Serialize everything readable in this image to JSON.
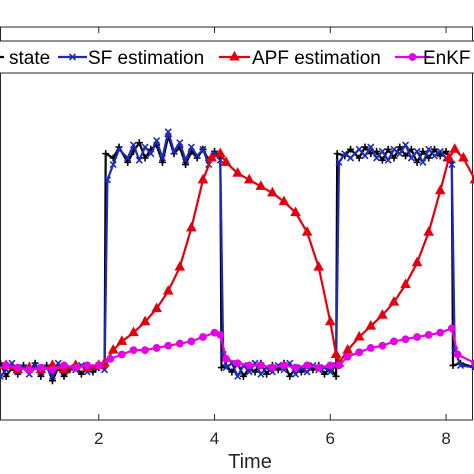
{
  "chart_data": {
    "type": "line",
    "xlabel": "Time",
    "ylabel": "",
    "title": "",
    "xlim": [
      0.0,
      8.5
    ],
    "ylim": [
      -0.2,
      1.6
    ],
    "xticks": [
      2,
      4,
      6,
      8
    ],
    "xtick_labels": [
      "2",
      "4",
      "6",
      "8"
    ],
    "grid": false,
    "legend_position": "top",
    "series": [
      {
        "name": "state",
        "color": "#000000",
        "marker": "plus",
        "points": [
          [
            0.0,
            0.03
          ],
          [
            0.1,
            0.05
          ],
          [
            0.2,
            0.02
          ],
          [
            0.3,
            0.06
          ],
          [
            0.4,
            0.0
          ],
          [
            0.5,
            0.04
          ],
          [
            0.6,
            0.01
          ],
          [
            0.7,
            0.05
          ],
          [
            0.8,
            0.02
          ],
          [
            0.9,
            0.06
          ],
          [
            1.0,
            0.0
          ],
          [
            1.1,
            0.05
          ],
          [
            1.2,
            -0.02
          ],
          [
            1.3,
            0.04
          ],
          [
            1.4,
            0.0
          ],
          [
            1.5,
            0.03
          ],
          [
            1.6,
            0.05
          ],
          [
            1.7,
            0.01
          ],
          [
            1.8,
            0.04
          ],
          [
            1.9,
            0.02
          ],
          [
            2.0,
            0.04
          ],
          [
            2.1,
            0.06
          ],
          [
            2.12,
            1.02
          ],
          [
            2.25,
            1.0
          ],
          [
            2.35,
            1.05
          ],
          [
            2.5,
            0.98
          ],
          [
            2.6,
            1.03
          ],
          [
            2.7,
            1.07
          ],
          [
            2.8,
            1.0
          ],
          [
            2.9,
            1.04
          ],
          [
            3.0,
            1.06
          ],
          [
            3.1,
            0.98
          ],
          [
            3.2,
            1.1
          ],
          [
            3.3,
            1.02
          ],
          [
            3.4,
            1.05
          ],
          [
            3.5,
            0.97
          ],
          [
            3.6,
            1.03
          ],
          [
            3.7,
            1.0
          ],
          [
            3.8,
            1.04
          ],
          [
            3.9,
            0.99
          ],
          [
            4.0,
            1.03
          ],
          [
            4.1,
            1.0
          ],
          [
            4.12,
            0.04
          ],
          [
            4.2,
            0.05
          ],
          [
            4.3,
            0.02
          ],
          [
            4.4,
            0.06
          ],
          [
            4.5,
            0.0
          ],
          [
            4.6,
            0.04
          ],
          [
            4.7,
            0.02
          ],
          [
            4.8,
            0.06
          ],
          [
            4.9,
            0.01
          ],
          [
            5.0,
            0.05
          ],
          [
            5.1,
            0.03
          ],
          [
            5.2,
            0.06
          ],
          [
            5.3,
            0.0
          ],
          [
            5.4,
            0.04
          ],
          [
            5.5,
            0.02
          ],
          [
            5.6,
            0.05
          ],
          [
            5.7,
            0.03
          ],
          [
            5.8,
            0.05
          ],
          [
            5.9,
            0.01
          ],
          [
            6.0,
            0.04
          ],
          [
            6.1,
            0.0
          ],
          [
            6.12,
            1.02
          ],
          [
            6.25,
            1.01
          ],
          [
            6.35,
            1.04
          ],
          [
            6.5,
            1.0
          ],
          [
            6.6,
            1.05
          ],
          [
            6.7,
            1.02
          ],
          [
            6.8,
            1.03
          ],
          [
            6.9,
            0.99
          ],
          [
            7.0,
            1.04
          ],
          [
            7.1,
            1.0
          ],
          [
            7.2,
            1.05
          ],
          [
            7.3,
            1.01
          ],
          [
            7.4,
            1.04
          ],
          [
            7.5,
            0.98
          ],
          [
            7.6,
            1.03
          ],
          [
            7.7,
            1.0
          ],
          [
            7.8,
            1.04
          ],
          [
            7.9,
            1.01
          ],
          [
            8.0,
            1.03
          ],
          [
            8.1,
            0.98
          ],
          [
            8.12,
            0.05
          ],
          [
            8.25,
            0.06
          ],
          [
            8.5,
            0.04
          ]
        ]
      },
      {
        "name": "SF estimation",
        "color": "#1f2bb8",
        "marker": "x",
        "points": [
          [
            0.0,
            0.04
          ],
          [
            0.1,
            0.02
          ],
          [
            0.2,
            0.05
          ],
          [
            0.3,
            0.0
          ],
          [
            0.4,
            0.03
          ],
          [
            0.5,
            0.06
          ],
          [
            0.6,
            0.02
          ],
          [
            0.7,
            0.04
          ],
          [
            0.8,
            0.01
          ],
          [
            0.9,
            0.05
          ],
          [
            1.0,
            0.02
          ],
          [
            1.1,
            0.04
          ],
          [
            1.2,
            0.0
          ],
          [
            1.3,
            0.06
          ],
          [
            1.4,
            0.02
          ],
          [
            1.5,
            0.04
          ],
          [
            1.6,
            0.03
          ],
          [
            1.7,
            0.05
          ],
          [
            1.8,
            0.02
          ],
          [
            1.9,
            0.04
          ],
          [
            2.0,
            0.05
          ],
          [
            2.1,
            0.03
          ],
          [
            2.15,
            0.9
          ],
          [
            2.25,
            0.97
          ],
          [
            2.35,
            1.04
          ],
          [
            2.5,
            1.0
          ],
          [
            2.6,
            1.06
          ],
          [
            2.7,
            0.99
          ],
          [
            2.8,
            1.05
          ],
          [
            2.9,
            1.02
          ],
          [
            3.0,
            1.08
          ],
          [
            3.1,
            1.0
          ],
          [
            3.2,
            1.12
          ],
          [
            3.3,
            1.03
          ],
          [
            3.4,
            1.07
          ],
          [
            3.5,
            0.99
          ],
          [
            3.6,
            1.05
          ],
          [
            3.7,
            1.01
          ],
          [
            3.8,
            1.04
          ],
          [
            3.9,
            0.97
          ],
          [
            4.0,
            1.02
          ],
          [
            4.1,
            0.99
          ],
          [
            4.15,
            0.1
          ],
          [
            4.2,
            0.04
          ],
          [
            4.3,
            0.06
          ],
          [
            4.4,
            0.0
          ],
          [
            4.5,
            0.05
          ],
          [
            4.6,
            0.02
          ],
          [
            4.7,
            0.06
          ],
          [
            4.8,
            0.01
          ],
          [
            4.9,
            0.04
          ],
          [
            5.0,
            0.02
          ],
          [
            5.1,
            0.05
          ],
          [
            5.2,
            0.03
          ],
          [
            5.3,
            0.06
          ],
          [
            5.4,
            0.01
          ],
          [
            5.5,
            0.04
          ],
          [
            5.6,
            0.02
          ],
          [
            5.7,
            0.05
          ],
          [
            5.8,
            0.03
          ],
          [
            5.9,
            0.04
          ],
          [
            6.0,
            0.02
          ],
          [
            6.1,
            0.05
          ],
          [
            6.15,
            0.98
          ],
          [
            6.25,
            1.02
          ],
          [
            6.35,
            1.0
          ],
          [
            6.5,
            1.04
          ],
          [
            6.6,
            1.01
          ],
          [
            6.7,
            1.05
          ],
          [
            6.8,
            1.0
          ],
          [
            6.9,
            1.03
          ],
          [
            7.0,
            0.99
          ],
          [
            7.1,
            1.04
          ],
          [
            7.2,
            1.02
          ],
          [
            7.3,
            1.06
          ],
          [
            7.4,
            1.0
          ],
          [
            7.5,
            1.03
          ],
          [
            7.6,
            0.98
          ],
          [
            7.7,
            1.04
          ],
          [
            7.8,
            1.01
          ],
          [
            7.9,
            1.03
          ],
          [
            8.0,
            1.0
          ],
          [
            8.1,
            0.97
          ],
          [
            8.15,
            0.12
          ],
          [
            8.25,
            0.05
          ],
          [
            8.5,
            0.04
          ]
        ]
      },
      {
        "name": "APF estimation",
        "color": "#e3000e",
        "marker": "triangle",
        "points": [
          [
            0.0,
            0.04
          ],
          [
            0.2,
            0.03
          ],
          [
            0.4,
            0.05
          ],
          [
            0.6,
            0.03
          ],
          [
            0.8,
            0.04
          ],
          [
            1.0,
            0.03
          ],
          [
            1.2,
            0.05
          ],
          [
            1.4,
            0.03
          ],
          [
            1.6,
            0.05
          ],
          [
            1.8,
            0.04
          ],
          [
            2.0,
            0.05
          ],
          [
            2.1,
            0.06
          ],
          [
            2.25,
            0.12
          ],
          [
            2.4,
            0.16
          ],
          [
            2.6,
            0.2
          ],
          [
            2.8,
            0.25
          ],
          [
            3.0,
            0.31
          ],
          [
            3.2,
            0.39
          ],
          [
            3.4,
            0.5
          ],
          [
            3.6,
            0.68
          ],
          [
            3.8,
            0.9
          ],
          [
            3.95,
            1.0
          ],
          [
            4.1,
            1.02
          ],
          [
            4.2,
            0.98
          ],
          [
            4.4,
            0.93
          ],
          [
            4.6,
            0.9
          ],
          [
            4.8,
            0.87
          ],
          [
            5.0,
            0.84
          ],
          [
            5.2,
            0.8
          ],
          [
            5.4,
            0.75
          ],
          [
            5.6,
            0.66
          ],
          [
            5.8,
            0.5
          ],
          [
            6.0,
            0.25
          ],
          [
            6.1,
            0.1
          ],
          [
            6.15,
            0.06
          ],
          [
            6.3,
            0.12
          ],
          [
            6.5,
            0.18
          ],
          [
            6.7,
            0.23
          ],
          [
            6.9,
            0.28
          ],
          [
            7.1,
            0.34
          ],
          [
            7.3,
            0.42
          ],
          [
            7.5,
            0.52
          ],
          [
            7.7,
            0.66
          ],
          [
            7.9,
            0.85
          ],
          [
            8.05,
            1.0
          ],
          [
            8.15,
            1.04
          ],
          [
            8.3,
            1.0
          ],
          [
            8.5,
            0.9
          ]
        ]
      },
      {
        "name": "EnKF estimation",
        "color": "#e600e6",
        "marker": "circle",
        "points": [
          [
            0.0,
            0.04
          ],
          [
            0.2,
            0.03
          ],
          [
            0.4,
            0.05
          ],
          [
            0.6,
            0.04
          ],
          [
            0.8,
            0.03
          ],
          [
            1.0,
            0.04
          ],
          [
            1.2,
            0.03
          ],
          [
            1.4,
            0.05
          ],
          [
            1.6,
            0.04
          ],
          [
            1.8,
            0.05
          ],
          [
            2.0,
            0.05
          ],
          [
            2.2,
            0.08
          ],
          [
            2.4,
            0.1
          ],
          [
            2.6,
            0.12
          ],
          [
            2.8,
            0.12
          ],
          [
            3.0,
            0.13
          ],
          [
            3.2,
            0.14
          ],
          [
            3.4,
            0.15
          ],
          [
            3.6,
            0.16
          ],
          [
            3.8,
            0.18
          ],
          [
            4.0,
            0.2
          ],
          [
            4.1,
            0.19
          ],
          [
            4.2,
            0.08
          ],
          [
            4.4,
            0.06
          ],
          [
            4.6,
            0.05
          ],
          [
            4.8,
            0.05
          ],
          [
            5.0,
            0.04
          ],
          [
            5.2,
            0.05
          ],
          [
            5.4,
            0.04
          ],
          [
            5.6,
            0.05
          ],
          [
            5.8,
            0.04
          ],
          [
            6.0,
            0.05
          ],
          [
            6.15,
            0.05
          ],
          [
            6.3,
            0.09
          ],
          [
            6.5,
            0.11
          ],
          [
            6.7,
            0.13
          ],
          [
            6.9,
            0.14
          ],
          [
            7.1,
            0.16
          ],
          [
            7.3,
            0.17
          ],
          [
            7.5,
            0.18
          ],
          [
            7.7,
            0.19
          ],
          [
            7.9,
            0.2
          ],
          [
            8.1,
            0.22
          ],
          [
            8.2,
            0.1
          ],
          [
            8.5,
            0.06
          ]
        ]
      }
    ]
  }
}
